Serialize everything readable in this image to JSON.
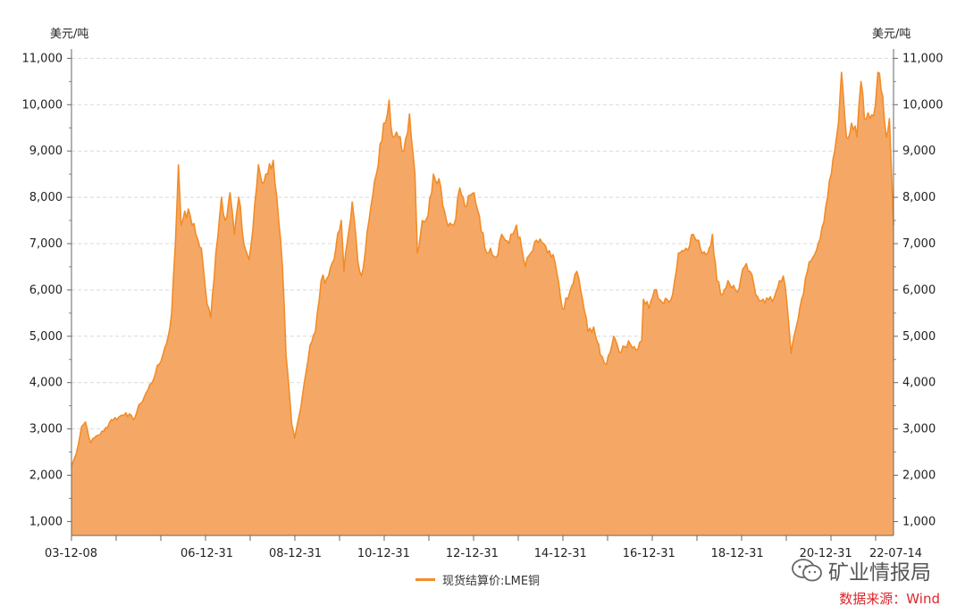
{
  "chart_data": {
    "type": "area",
    "y_unit_left": "美元/吨",
    "y_unit_right": "美元/吨",
    "x_tick_labels": [
      "03-12-08",
      "06-12-31",
      "08-12-31",
      "10-12-31",
      "12-12-31",
      "14-12-31",
      "16-12-31",
      "18-12-31",
      "20-12-31",
      "22-07-14"
    ],
    "y_ticks": [
      1000,
      2000,
      3000,
      4000,
      5000,
      6000,
      7000,
      8000,
      9000,
      10000,
      11000
    ],
    "y_tick_labels": [
      "1,000",
      "2,000",
      "3,000",
      "4,000",
      "5,000",
      "6,000",
      "7,000",
      "8,000",
      "9,000",
      "10,000",
      "11,000"
    ],
    "ylim": [
      700,
      11200
    ],
    "xlim": [
      "2003-12-08",
      "2022-07-14"
    ],
    "grid": true,
    "legend_position": "bottom-center",
    "series": [
      {
        "name": "现货结算价:LME铜",
        "color": "#f28c28",
        "fill": "#f5a866",
        "points": [
          [
            "2003-12-08",
            2200
          ],
          [
            "2004-01-15",
            2450
          ],
          [
            "2004-03-01",
            3050
          ],
          [
            "2004-04-01",
            3150
          ],
          [
            "2004-05-15",
            2700
          ],
          [
            "2004-07-01",
            2850
          ],
          [
            "2004-09-01",
            2950
          ],
          [
            "2004-11-01",
            3200
          ],
          [
            "2005-01-01",
            3250
          ],
          [
            "2005-03-01",
            3350
          ],
          [
            "2005-05-01",
            3200
          ],
          [
            "2005-07-01",
            3550
          ],
          [
            "2005-09-01",
            3850
          ],
          [
            "2005-11-01",
            4200
          ],
          [
            "2006-01-01",
            4600
          ],
          [
            "2006-02-15",
            5000
          ],
          [
            "2006-03-15",
            5500
          ],
          [
            "2006-04-15",
            7000
          ],
          [
            "2006-05-10",
            8700
          ],
          [
            "2006-06-01",
            7400
          ],
          [
            "2006-07-01",
            7700
          ],
          [
            "2006-08-15",
            7600
          ],
          [
            "2006-10-01",
            7200
          ],
          [
            "2006-11-15",
            6900
          ],
          [
            "2007-01-01",
            5700
          ],
          [
            "2007-02-01",
            5400
          ],
          [
            "2007-03-15",
            6800
          ],
          [
            "2007-05-01",
            8000
          ],
          [
            "2007-06-01",
            7500
          ],
          [
            "2007-07-10",
            8100
          ],
          [
            "2007-08-15",
            7200
          ],
          [
            "2007-09-20",
            8000
          ],
          [
            "2007-11-01",
            7000
          ],
          [
            "2007-12-15",
            6650
          ],
          [
            "2008-01-15",
            7300
          ],
          [
            "2008-03-01",
            8700
          ],
          [
            "2008-04-01",
            8300
          ],
          [
            "2008-05-01",
            8500
          ],
          [
            "2008-07-01",
            8800
          ],
          [
            "2008-08-15",
            7500
          ],
          [
            "2008-09-15",
            6500
          ],
          [
            "2008-10-15",
            4600
          ],
          [
            "2008-12-01",
            3100
          ],
          [
            "2008-12-25",
            2800
          ],
          [
            "2009-02-01",
            3300
          ],
          [
            "2009-03-15",
            4000
          ],
          [
            "2009-05-01",
            4800
          ],
          [
            "2009-06-15",
            5100
          ],
          [
            "2009-08-01",
            6200
          ],
          [
            "2009-10-01",
            6300
          ],
          [
            "2009-12-01",
            6900
          ],
          [
            "2010-01-15",
            7500
          ],
          [
            "2010-02-05",
            6400
          ],
          [
            "2010-04-15",
            7900
          ],
          [
            "2010-06-01",
            6600
          ],
          [
            "2010-07-01",
            6300
          ],
          [
            "2010-09-01",
            7500
          ],
          [
            "2010-11-01",
            8500
          ],
          [
            "2010-12-31",
            9600
          ],
          [
            "2011-02-14",
            10100
          ],
          [
            "2011-03-15",
            9300
          ],
          [
            "2011-05-01",
            9300
          ],
          [
            "2011-06-15",
            9000
          ],
          [
            "2011-08-01",
            9800
          ],
          [
            "2011-09-15",
            8500
          ],
          [
            "2011-10-05",
            6800
          ],
          [
            "2011-11-15",
            7500
          ],
          [
            "2012-01-01",
            7600
          ],
          [
            "2012-02-15",
            8500
          ],
          [
            "2012-04-01",
            8400
          ],
          [
            "2012-06-01",
            7500
          ],
          [
            "2012-08-01",
            7400
          ],
          [
            "2012-09-20",
            8200
          ],
          [
            "2012-11-01",
            7800
          ],
          [
            "2013-01-15",
            8100
          ],
          [
            "2013-03-01",
            7600
          ],
          [
            "2013-04-15",
            6900
          ],
          [
            "2013-06-01",
            6900
          ],
          [
            "2013-07-15",
            6700
          ],
          [
            "2013-09-01",
            7200
          ],
          [
            "2013-11-01",
            7000
          ],
          [
            "2014-01-01",
            7400
          ],
          [
            "2014-03-15",
            6500
          ],
          [
            "2014-05-01",
            6800
          ],
          [
            "2014-07-15",
            7100
          ],
          [
            "2014-09-15",
            6800
          ],
          [
            "2014-11-15",
            6600
          ],
          [
            "2015-01-15",
            5600
          ],
          [
            "2015-03-01",
            5800
          ],
          [
            "2015-05-15",
            6400
          ],
          [
            "2015-07-01",
            5800
          ],
          [
            "2015-08-15",
            5100
          ],
          [
            "2015-10-01",
            5200
          ],
          [
            "2015-11-25",
            4600
          ],
          [
            "2016-01-15",
            4400
          ],
          [
            "2016-03-15",
            5000
          ],
          [
            "2016-05-15",
            4650
          ],
          [
            "2016-07-15",
            4900
          ],
          [
            "2016-09-15",
            4700
          ],
          [
            "2016-11-01",
            4900
          ],
          [
            "2016-11-15",
            5800
          ],
          [
            "2016-12-31",
            5600
          ],
          [
            "2017-02-15",
            6000
          ],
          [
            "2017-05-01",
            5700
          ],
          [
            "2017-07-15",
            5900
          ],
          [
            "2017-09-01",
            6800
          ],
          [
            "2017-11-01",
            6900
          ],
          [
            "2018-01-01",
            7200
          ],
          [
            "2018-03-01",
            6900
          ],
          [
            "2018-05-01",
            6800
          ],
          [
            "2018-06-08",
            7200
          ],
          [
            "2018-07-15",
            6200
          ],
          [
            "2018-09-01",
            5900
          ],
          [
            "2018-10-15",
            6200
          ],
          [
            "2018-12-31",
            5950
          ],
          [
            "2019-03-01",
            6500
          ],
          [
            "2019-04-15",
            6400
          ],
          [
            "2019-06-01",
            5900
          ],
          [
            "2019-08-01",
            5800
          ],
          [
            "2019-10-15",
            5750
          ],
          [
            "2019-12-15",
            6200
          ],
          [
            "2020-01-15",
            6300
          ],
          [
            "2020-02-15",
            5700
          ],
          [
            "2020-03-20",
            4630
          ],
          [
            "2020-05-01",
            5200
          ],
          [
            "2020-06-15",
            5800
          ],
          [
            "2020-08-01",
            6400
          ],
          [
            "2020-09-15",
            6700
          ],
          [
            "2020-11-15",
            7100
          ],
          [
            "2020-12-31",
            7800
          ],
          [
            "2021-02-15",
            8500
          ],
          [
            "2021-03-15",
            9000
          ],
          [
            "2021-04-15",
            9600
          ],
          [
            "2021-05-10",
            10700
          ],
          [
            "2021-06-20",
            9300
          ],
          [
            "2021-08-01",
            9600
          ],
          [
            "2021-09-15",
            9300
          ],
          [
            "2021-10-18",
            10500
          ],
          [
            "2021-11-15",
            9700
          ],
          [
            "2021-12-31",
            9700
          ],
          [
            "2022-02-15",
            10000
          ],
          [
            "2022-03-07",
            10700
          ],
          [
            "2022-04-15",
            10200
          ],
          [
            "2022-05-15",
            9300
          ],
          [
            "2022-06-10",
            9700
          ],
          [
            "2022-06-25",
            8700
          ],
          [
            "2022-07-14",
            7400
          ]
        ]
      }
    ]
  },
  "legend": {
    "label": "现货结算价:LME铜",
    "color": "#f28c28"
  },
  "watermark": {
    "text": "矿业情报局",
    "icon": "wechat-icon"
  },
  "source_note": {
    "text": "数据来源：Wind",
    "color": "#e0242b"
  }
}
